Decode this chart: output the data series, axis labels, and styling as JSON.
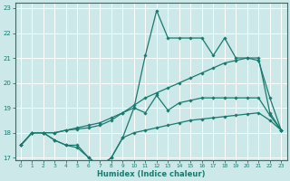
{
  "xlabel": "Humidex (Indice chaleur)",
  "bg_color": "#cce8e8",
  "grid_color": "#ffffff",
  "line_color": "#1a7a6e",
  "xlim": [
    -0.5,
    23.5
  ],
  "ylim": [
    16.9,
    23.2
  ],
  "yticks": [
    17,
    18,
    19,
    20,
    21,
    22,
    23
  ],
  "xticks": [
    0,
    1,
    2,
    3,
    4,
    5,
    6,
    7,
    8,
    9,
    10,
    11,
    12,
    13,
    14,
    15,
    16,
    17,
    18,
    19,
    20,
    21,
    22,
    23
  ],
  "series": [
    {
      "x": [
        0,
        1,
        2,
        3,
        4,
        5,
        6,
        7,
        8,
        9,
        10,
        11,
        12,
        13,
        14,
        15,
        16,
        17,
        18,
        19,
        20,
        21,
        22,
        23
      ],
      "y": [
        17.5,
        18.0,
        18.0,
        17.7,
        17.5,
        17.4,
        17.0,
        16.65,
        17.0,
        17.8,
        19.0,
        21.1,
        22.9,
        21.8,
        21.8,
        21.8,
        21.8,
        21.1,
        21.8,
        21.0,
        21.0,
        21.0,
        18.8,
        18.1
      ]
    },
    {
      "x": [
        0,
        1,
        2,
        3,
        4,
        5,
        6,
        7,
        8,
        9,
        10,
        11,
        12,
        13,
        14,
        15,
        16,
        17,
        18,
        19,
        20,
        21,
        22,
        23
      ],
      "y": [
        17.5,
        18.0,
        18.0,
        18.0,
        18.1,
        18.2,
        18.3,
        18.4,
        18.6,
        18.8,
        19.1,
        19.4,
        19.6,
        19.8,
        20.0,
        20.2,
        20.4,
        20.6,
        20.8,
        20.9,
        21.0,
        20.9,
        19.4,
        18.1
      ]
    },
    {
      "x": [
        0,
        1,
        2,
        3,
        4,
        5,
        6,
        7,
        8,
        9,
        10,
        11,
        12,
        13,
        14,
        15,
        16,
        17,
        18,
        19,
        20,
        21,
        22,
        23
      ],
      "y": [
        17.5,
        18.0,
        18.0,
        18.0,
        18.1,
        18.15,
        18.2,
        18.3,
        18.5,
        18.8,
        19.0,
        18.8,
        19.5,
        18.9,
        19.2,
        19.3,
        19.4,
        19.4,
        19.4,
        19.4,
        19.4,
        19.4,
        18.7,
        18.1
      ]
    },
    {
      "x": [
        0,
        1,
        2,
        3,
        4,
        5,
        6,
        7,
        8,
        9,
        10,
        11,
        12,
        13,
        14,
        15,
        16,
        17,
        18,
        19,
        20,
        21,
        22,
        23
      ],
      "y": [
        17.5,
        18.0,
        18.0,
        17.7,
        17.5,
        17.5,
        17.0,
        16.65,
        17.0,
        17.8,
        18.0,
        18.1,
        18.2,
        18.3,
        18.4,
        18.5,
        18.55,
        18.6,
        18.65,
        18.7,
        18.75,
        18.8,
        18.5,
        18.1
      ]
    }
  ]
}
